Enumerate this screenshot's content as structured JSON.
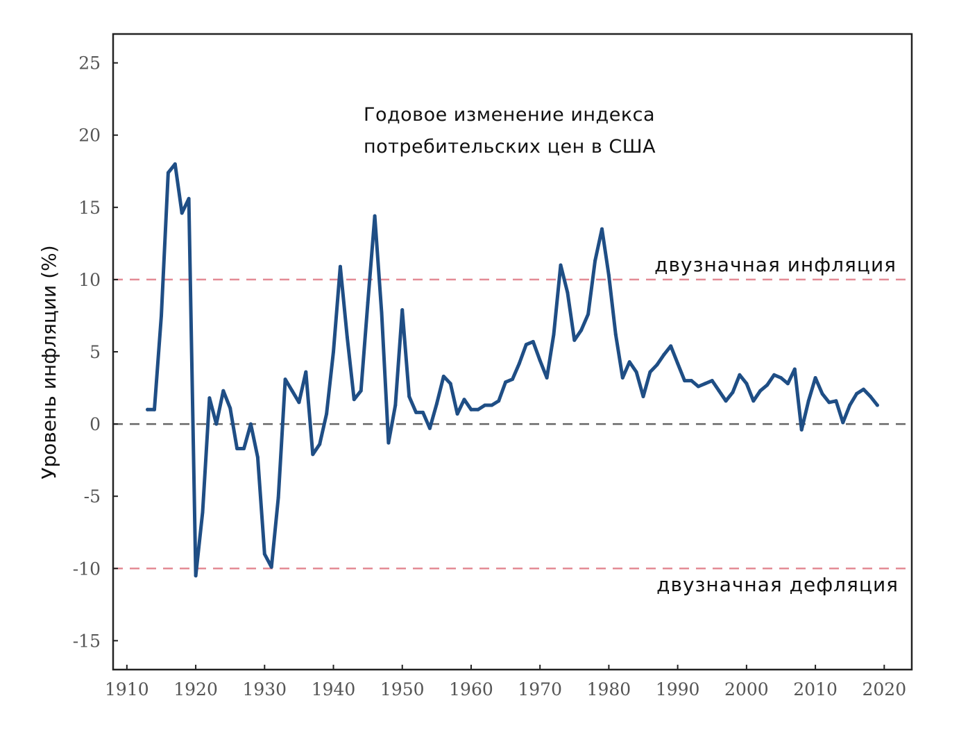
{
  "chart_data": {
    "type": "line",
    "title": "Годовое изменение индекса",
    "subtitle": "потребительских цен в США",
    "ylabel": "Уровень инфляции (%)",
    "xlabel": "",
    "xlim": [
      1908,
      2024
    ],
    "ylim": [
      -17,
      27
    ],
    "x_ticks": [
      1910,
      1920,
      1930,
      1940,
      1950,
      1960,
      1970,
      1980,
      1990,
      2000,
      2010,
      2020
    ],
    "y_ticks": [
      25,
      20,
      15,
      10,
      5,
      0,
      -5,
      -10,
      -15
    ],
    "grid": false,
    "series": [
      {
        "color": "#1f4e85",
        "x": [
          1913,
          1914,
          1915,
          1916,
          1917,
          1918,
          1919,
          1920,
          1921,
          1922,
          1923,
          1924,
          1925,
          1926,
          1927,
          1928,
          1929,
          1930,
          1931,
          1932,
          1933,
          1934,
          1935,
          1936,
          1937,
          1938,
          1939,
          1940,
          1941,
          1942,
          1943,
          1944,
          1945,
          1946,
          1947,
          1948,
          1949,
          1950,
          1951,
          1952,
          1953,
          1954,
          1955,
          1956,
          1957,
          1958,
          1959,
          1960,
          1961,
          1962,
          1963,
          1964,
          1965,
          1966,
          1967,
          1968,
          1969,
          1970,
          1971,
          1972,
          1973,
          1974,
          1975,
          1976,
          1977,
          1978,
          1979,
          1980,
          1981,
          1982,
          1983,
          1984,
          1985,
          1986,
          1987,
          1988,
          1989,
          1990,
          1991,
          1992,
          1993,
          1994,
          1995,
          1996,
          1997,
          1998,
          1999,
          2000,
          2001,
          2002,
          2003,
          2004,
          2005,
          2006,
          2007,
          2008,
          2009,
          2010,
          2011,
          2012,
          2013,
          2014,
          2015,
          2016,
          2017,
          2018,
          2019
        ],
        "y": [
          1.0,
          1.0,
          7.5,
          17.4,
          18.0,
          14.6,
          15.6,
          -10.5,
          -6.1,
          1.8,
          0.0,
          2.3,
          1.1,
          -1.7,
          -1.7,
          0.0,
          -2.3,
          -9.0,
          -9.9,
          -5.1,
          3.1,
          2.3,
          1.5,
          3.6,
          -2.1,
          -1.4,
          0.7,
          5.0,
          10.9,
          6.0,
          1.7,
          2.3,
          8.4,
          14.4,
          7.7,
          -1.3,
          1.3,
          7.9,
          1.9,
          0.8,
          0.8,
          -0.3,
          1.4,
          3.3,
          2.8,
          0.7,
          1.7,
          1.0,
          1.0,
          1.3,
          1.3,
          1.6,
          2.9,
          3.1,
          4.2,
          5.5,
          5.7,
          4.4,
          3.2,
          6.2,
          11.0,
          9.1,
          5.8,
          6.5,
          7.6,
          11.3,
          13.5,
          10.3,
          6.2,
          3.2,
          4.3,
          3.6,
          1.9,
          3.6,
          4.1,
          4.8,
          5.4,
          4.2,
          3.0,
          3.0,
          2.6,
          2.8,
          3.0,
          2.3,
          1.6,
          2.2,
          3.4,
          2.8,
          1.6,
          2.3,
          2.7,
          3.4,
          3.2,
          2.8,
          3.8,
          -0.4,
          1.6,
          3.2,
          2.1,
          1.5,
          1.6,
          0.1,
          1.3,
          2.1,
          2.4,
          1.9,
          1.3
        ]
      }
    ],
    "reference_lines": [
      {
        "y": 10,
        "color": "#e38b95",
        "label": "двузначная инфляция"
      },
      {
        "y": 0,
        "color": "#666666",
        "label": ""
      },
      {
        "y": -10,
        "color": "#e38b95",
        "label": "двузначная дефляция"
      }
    ]
  }
}
